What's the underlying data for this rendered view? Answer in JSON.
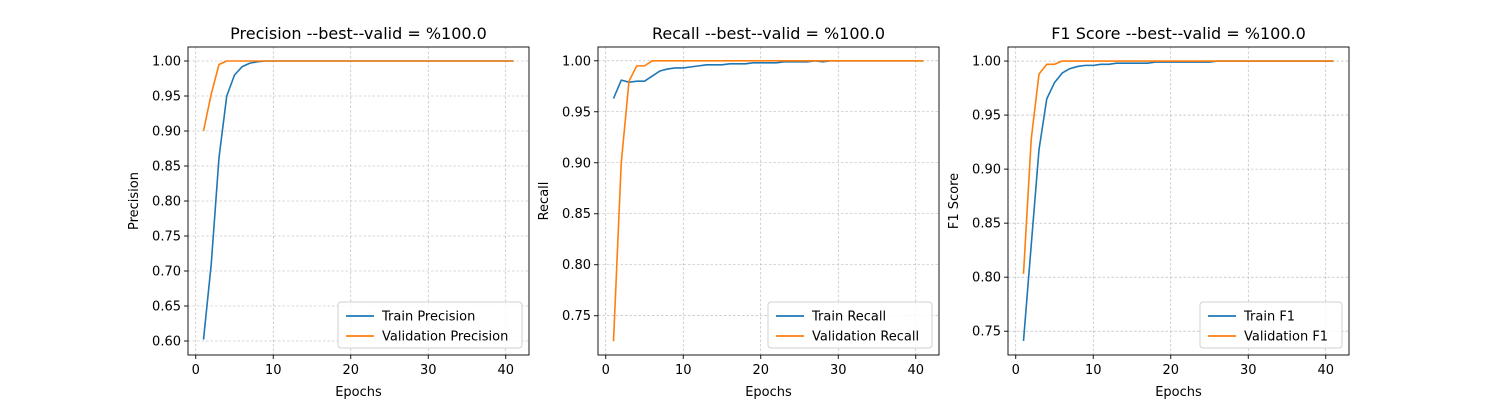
{
  "chart_data": [
    {
      "type": "line",
      "title": "Precision --best--valid = %100.0",
      "xlabel": "Epochs",
      "ylabel": "Precision",
      "xlim": [
        -1,
        43
      ],
      "ylim": [
        0.58,
        1.02
      ],
      "xticks": [
        0,
        10,
        20,
        30,
        40
      ],
      "yticks": [
        0.6,
        0.65,
        0.7,
        0.75,
        0.8,
        0.85,
        0.9,
        0.95,
        1.0
      ],
      "grid": true,
      "legend_position": "lower-right",
      "x": [
        1,
        2,
        3,
        4,
        5,
        6,
        7,
        8,
        9,
        10,
        11,
        12,
        13,
        14,
        15,
        16,
        17,
        18,
        19,
        20,
        21,
        22,
        23,
        24,
        25,
        26,
        27,
        28,
        29,
        30,
        31,
        32,
        33,
        34,
        35,
        36,
        37,
        38,
        39,
        40,
        41
      ],
      "series": [
        {
          "name": "Train Precision",
          "color": "#1f77b4",
          "values": [
            0.602,
            0.71,
            0.862,
            0.95,
            0.98,
            0.992,
            0.997,
            0.999,
            1.0,
            1.0,
            1.0,
            1.0,
            1.0,
            1.0,
            1.0,
            1.0,
            1.0,
            1.0,
            1.0,
            1.0,
            1.0,
            1.0,
            1.0,
            1.0,
            1.0,
            1.0,
            1.0,
            1.0,
            1.0,
            1.0,
            1.0,
            1.0,
            1.0,
            1.0,
            1.0,
            1.0,
            1.0,
            1.0,
            1.0,
            1.0,
            1.0
          ]
        },
        {
          "name": "Validation Precision",
          "color": "#ff7f0e",
          "values": [
            0.9,
            0.953,
            0.995,
            1.0,
            1.0,
            1.0,
            1.0,
            1.0,
            1.0,
            1.0,
            1.0,
            1.0,
            1.0,
            1.0,
            1.0,
            1.0,
            1.0,
            1.0,
            1.0,
            1.0,
            1.0,
            1.0,
            1.0,
            1.0,
            1.0,
            1.0,
            1.0,
            1.0,
            1.0,
            1.0,
            1.0,
            1.0,
            1.0,
            1.0,
            1.0,
            1.0,
            1.0,
            1.0,
            1.0,
            1.0,
            1.0
          ]
        }
      ]
    },
    {
      "type": "line",
      "title": "Recall --best--valid = %100.0",
      "xlabel": "Epochs",
      "ylabel": "Recall",
      "xlim": [
        -1,
        43
      ],
      "ylim": [
        0.7115,
        1.0135
      ],
      "xticks": [
        0,
        10,
        20,
        30,
        40
      ],
      "yticks": [
        0.75,
        0.8,
        0.85,
        0.9,
        0.95,
        1.0
      ],
      "grid": true,
      "legend_position": "lower-right",
      "x": [
        1,
        2,
        3,
        4,
        5,
        6,
        7,
        8,
        9,
        10,
        11,
        12,
        13,
        14,
        15,
        16,
        17,
        18,
        19,
        20,
        21,
        22,
        23,
        24,
        25,
        26,
        27,
        28,
        29,
        30,
        31,
        32,
        33,
        34,
        35,
        36,
        37,
        38,
        39,
        40,
        41
      ],
      "series": [
        {
          "name": "Train Recall",
          "color": "#1f77b4",
          "values": [
            0.963,
            0.981,
            0.979,
            0.98,
            0.98,
            0.985,
            0.99,
            0.992,
            0.993,
            0.993,
            0.994,
            0.995,
            0.996,
            0.996,
            0.996,
            0.997,
            0.997,
            0.997,
            0.998,
            0.998,
            0.998,
            0.998,
            0.999,
            0.999,
            0.999,
            0.999,
            1.0,
            0.999,
            1.0,
            1.0,
            1.0,
            1.0,
            1.0,
            1.0,
            1.0,
            1.0,
            1.0,
            1.0,
            1.0,
            1.0,
            1.0
          ]
        },
        {
          "name": "Validation Recall",
          "color": "#ff7f0e",
          "values": [
            0.725,
            0.9,
            0.98,
            0.995,
            0.995,
            1.0,
            1.0,
            1.0,
            1.0,
            1.0,
            1.0,
            1.0,
            1.0,
            1.0,
            1.0,
            1.0,
            1.0,
            1.0,
            1.0,
            1.0,
            1.0,
            1.0,
            1.0,
            1.0,
            1.0,
            1.0,
            1.0,
            1.0,
            1.0,
            1.0,
            1.0,
            1.0,
            1.0,
            1.0,
            1.0,
            1.0,
            1.0,
            1.0,
            1.0,
            1.0,
            1.0
          ]
        }
      ]
    },
    {
      "type": "line",
      "title": "F1 Score --best--valid = %100.0",
      "xlabel": "Epochs",
      "ylabel": "F1 Score",
      "xlim": [
        -1,
        43
      ],
      "ylim": [
        0.728,
        1.013
      ],
      "xticks": [
        0,
        10,
        20,
        30,
        40
      ],
      "yticks": [
        0.75,
        0.8,
        0.85,
        0.9,
        0.95,
        1.0
      ],
      "grid": true,
      "legend_position": "lower-right",
      "x": [
        1,
        2,
        3,
        4,
        5,
        6,
        7,
        8,
        9,
        10,
        11,
        12,
        13,
        14,
        15,
        16,
        17,
        18,
        19,
        20,
        21,
        22,
        23,
        24,
        25,
        26,
        27,
        28,
        29,
        30,
        31,
        32,
        33,
        34,
        35,
        36,
        37,
        38,
        39,
        40,
        41
      ],
      "series": [
        {
          "name": "Train F1",
          "color": "#1f77b4",
          "values": [
            0.741,
            0.83,
            0.918,
            0.965,
            0.98,
            0.989,
            0.993,
            0.995,
            0.996,
            0.996,
            0.997,
            0.997,
            0.998,
            0.998,
            0.998,
            0.998,
            0.998,
            0.999,
            0.999,
            0.999,
            0.999,
            0.999,
            0.999,
            0.999,
            0.999,
            1.0,
            1.0,
            1.0,
            1.0,
            1.0,
            1.0,
            1.0,
            1.0,
            1.0,
            1.0,
            1.0,
            1.0,
            1.0,
            1.0,
            1.0,
            1.0
          ]
        },
        {
          "name": "Validation F1",
          "color": "#ff7f0e",
          "values": [
            0.803,
            0.928,
            0.988,
            0.997,
            0.997,
            1.0,
            1.0,
            1.0,
            1.0,
            1.0,
            1.0,
            1.0,
            1.0,
            1.0,
            1.0,
            1.0,
            1.0,
            1.0,
            1.0,
            1.0,
            1.0,
            1.0,
            1.0,
            1.0,
            1.0,
            1.0,
            1.0,
            1.0,
            1.0,
            1.0,
            1.0,
            1.0,
            1.0,
            1.0,
            1.0,
            1.0,
            1.0,
            1.0,
            1.0,
            1.0,
            1.0
          ]
        }
      ]
    }
  ]
}
